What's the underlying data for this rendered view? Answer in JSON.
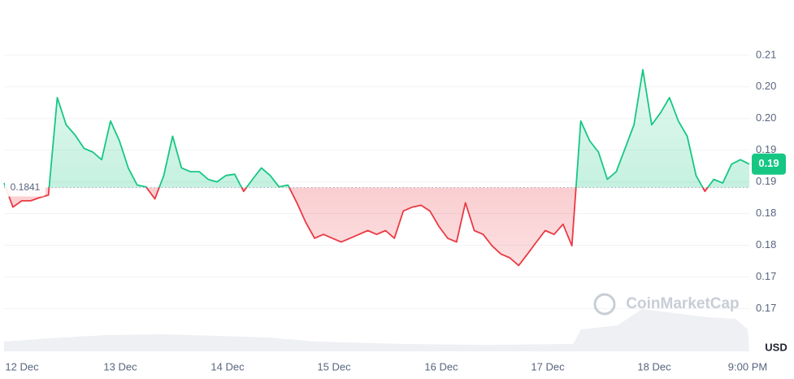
{
  "chart_data": {
    "type": "line",
    "baseline": {
      "value": 0.1841,
      "label": "0.1841"
    },
    "current_price": {
      "value": 0.1878,
      "label": "0.19"
    },
    "x_labels": [
      "12 Dec",
      "13 Dec",
      "14 Dec",
      "15 Dec",
      "16 Dec",
      "17 Dec",
      "18 Dec",
      "9:00 PM"
    ],
    "unit": "USD",
    "watermark": "CoinMarketCap",
    "up_color": "#16c784",
    "down_color": "#ea3943",
    "grid": true,
    "ylim": [
      0.1635,
      0.2105
    ],
    "yticks": [
      {
        "value": 0.165,
        "label": "0.17"
      },
      {
        "value": 0.17,
        "label": "0.17"
      },
      {
        "value": 0.175,
        "label": "0.18"
      },
      {
        "value": 0.18,
        "label": "0.18"
      },
      {
        "value": 0.185,
        "label": "0.19"
      },
      {
        "value": 0.19,
        "label": "0.19"
      },
      {
        "value": 0.195,
        "label": "0.20"
      },
      {
        "value": 0.2,
        "label": "0.20"
      },
      {
        "value": 0.205,
        "label": "0.21"
      }
    ],
    "values": [
      0.1848,
      0.181,
      0.182,
      0.182,
      0.1825,
      0.1829,
      0.1983,
      0.194,
      0.1924,
      0.1903,
      0.1897,
      0.1885,
      0.1946,
      0.1915,
      0.1872,
      0.1845,
      0.1842,
      0.1823,
      0.186,
      0.1922,
      0.1872,
      0.1866,
      0.1866,
      0.1854,
      0.185,
      0.186,
      0.1862,
      0.1835,
      0.1854,
      0.1872,
      0.186,
      0.1842,
      0.1845,
      0.1817,
      0.1786,
      0.1761,
      0.1767,
      0.1761,
      0.1755,
      0.1761,
      0.1767,
      0.1773,
      0.1767,
      0.1773,
      0.1761,
      0.1804,
      0.181,
      0.1813,
      0.1804,
      0.178,
      0.1761,
      0.1755,
      0.1817,
      0.1773,
      0.1767,
      0.1749,
      0.1736,
      0.173,
      0.1718,
      0.1736,
      0.1755,
      0.1773,
      0.1767,
      0.1783,
      0.1749,
      0.1946,
      0.1915,
      0.1897,
      0.1854,
      0.1866,
      0.1903,
      0.194,
      0.2027,
      0.194,
      0.1959,
      0.1983,
      0.1946,
      0.1922,
      0.186,
      0.1835,
      0.1854,
      0.1848,
      0.1878,
      0.1885,
      0.1878
    ]
  }
}
